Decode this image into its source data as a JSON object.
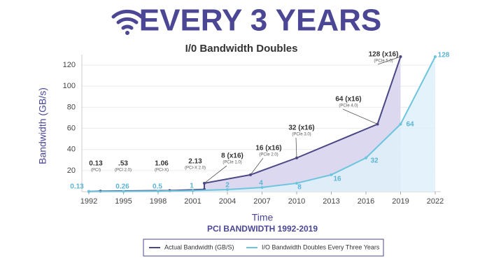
{
  "chart_data": {
    "type": "line",
    "title": "EVERY 3 YEARS",
    "subtitle": "I/0 Bandwidth Doubles",
    "x_label": "Time",
    "caption": "PCI BANDWIDTH 1992-2019",
    "y_label": "Bandwidth (GB/s)",
    "xlim": [
      1992,
      2022
    ],
    "xticks": [
      1992,
      1995,
      1998,
      2001,
      2004,
      2007,
      2010,
      2013,
      2016,
      2019,
      2022
    ],
    "ylim": [
      0,
      130
    ],
    "yticks": [
      20,
      40,
      60,
      80,
      100,
      120
    ],
    "grid": true,
    "series": [
      {
        "name": "Actual Bandwidth (GB/S)",
        "color": "#4a4785",
        "fill": "#dcd8ef",
        "x": [
          1992,
          1993,
          1999,
          2002,
          2002,
          2006,
          2010,
          2017,
          2019
        ],
        "values": [
          0.13,
          0.53,
          1.06,
          2.13,
          8,
          16,
          32,
          64,
          128
        ],
        "value_labels": [
          "0.13",
          ".53",
          "1.06",
          "2.13",
          "8 (x16)",
          "16 (x16)",
          "32 (x16)",
          "64 (x16)",
          "128 (x16)"
        ],
        "annotations": [
          "(PCI)",
          "(PCI 2.0)",
          "(PCI-X)",
          "(PCI-X 2.0)",
          "(PCIe 1.0)",
          "(PCIe 2.0)",
          "(PCIe 3.0)",
          "(PCIe 4.0)",
          "(PCIe 5.0)"
        ]
      },
      {
        "name": "I/O Bandwidth Doubles Every Three Years",
        "color": "#6cc5dc",
        "fill": "#dff1fa",
        "x": [
          1992,
          1995,
          1998,
          2001,
          2004,
          2007,
          2010,
          2013,
          2016,
          2019,
          2022
        ],
        "values": [
          0.13,
          0.26,
          0.5,
          1,
          2,
          4,
          8,
          16,
          32,
          64,
          128
        ]
      }
    ]
  }
}
